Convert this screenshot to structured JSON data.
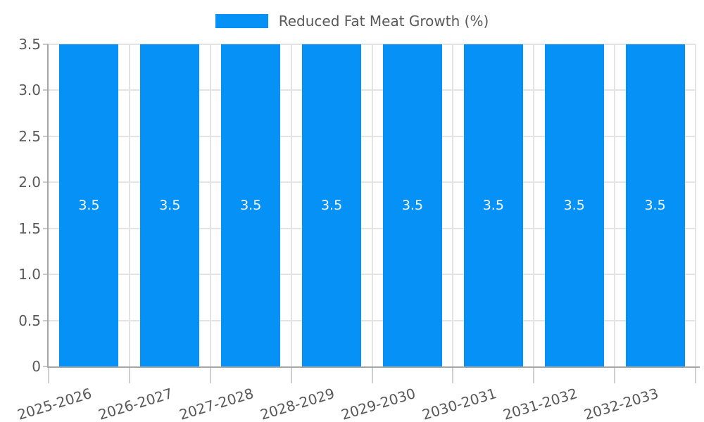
{
  "legend": {
    "label": "Reduced Fat Meat Growth (%)"
  },
  "colors": {
    "bar": "#0591f5",
    "grid": "#e3e3e3",
    "axis_line": "#a6a6a6",
    "tick_label": "#595959",
    "value_label": "#ffffff",
    "background": "#ffffff"
  },
  "chart_data": {
    "type": "bar",
    "title": "",
    "categories": [
      "2025-2026",
      "2026-2027",
      "2027-2028",
      "2028-2029",
      "2029-2030",
      "2030-2031",
      "2031-2032",
      "2032-2033"
    ],
    "series": [
      {
        "name": "Reduced Fat Meat Growth (%)",
        "values": [
          3.5,
          3.5,
          3.5,
          3.5,
          3.5,
          3.5,
          3.5,
          3.5
        ]
      }
    ],
    "value_labels": [
      "3.5",
      "3.5",
      "3.5",
      "3.5",
      "3.5",
      "3.5",
      "3.5",
      "3.5"
    ],
    "xlabel": "",
    "ylabel": "",
    "ylim": [
      0,
      3.5
    ],
    "yticks": [
      0,
      0.5,
      1,
      1.5,
      2,
      2.5,
      3,
      3.5
    ],
    "ytick_labels": [
      "0",
      "0.5",
      "1.0",
      "1.5",
      "2.0",
      "2.5",
      "3.0",
      "3.5"
    ],
    "grid": true,
    "legend_position": "top-center",
    "xtick_rotation_deg": -17
  }
}
